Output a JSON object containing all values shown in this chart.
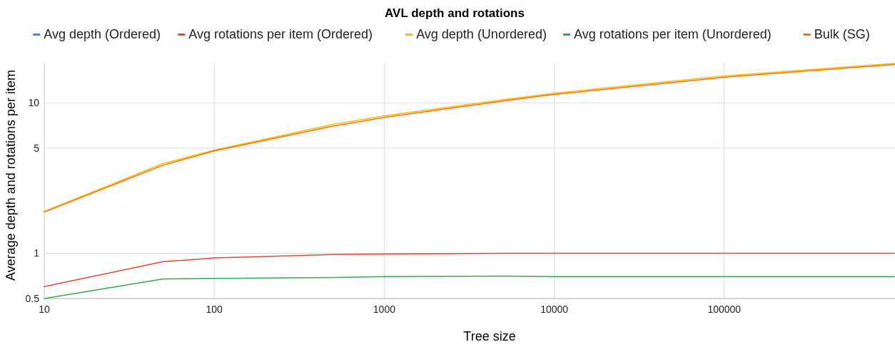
{
  "chart_data": {
    "type": "line",
    "title": "AVL depth and rotations",
    "xlabel": "Tree size",
    "ylabel": "Average depth and rotations per item",
    "log": "xy",
    "grid": true,
    "legend": "top",
    "marker": "none",
    "line_style": "solid",
    "x": [
      10,
      50,
      100,
      500,
      1000,
      5000,
      10000,
      100000,
      1000000
    ],
    "xlim": [
      10,
      1000000
    ],
    "xticks": [
      10,
      100,
      1000,
      10000,
      100000
    ],
    "ylim": [
      0.5,
      18.3
    ],
    "yticks": [
      0.5,
      1,
      5,
      10
    ],
    "series": [
      {
        "name": "Avg depth (Ordered)",
        "color": "#4285f4",
        "values": [
          null,
          null,
          null,
          null,
          null,
          null,
          null,
          null,
          null
        ]
      },
      {
        "name": "Avg rotations per item (Ordered)",
        "color": "#ea4335",
        "values": [
          0.6,
          0.88,
          0.93,
          0.98,
          0.99,
          1.0,
          1.0,
          1.0,
          1.0
        ]
      },
      {
        "name": "Avg depth (Unordered)",
        "color": "#fbbc04",
        "values": [
          1.9,
          3.95,
          4.85,
          7.2,
          8.2,
          10.5,
          11.6,
          15.1,
          18.3
        ]
      },
      {
        "name": "Avg rotations per item (Unordered)",
        "color": "#34a853",
        "values": [
          0.5,
          0.675,
          0.68,
          0.69,
          0.7,
          0.705,
          0.7,
          0.7,
          0.7
        ]
      },
      {
        "name": "Bulk (SG)",
        "color": "#ff6d01",
        "values": [
          1.88,
          3.85,
          4.8,
          7.0,
          8.0,
          10.3,
          11.4,
          14.8,
          18.0
        ]
      }
    ]
  }
}
